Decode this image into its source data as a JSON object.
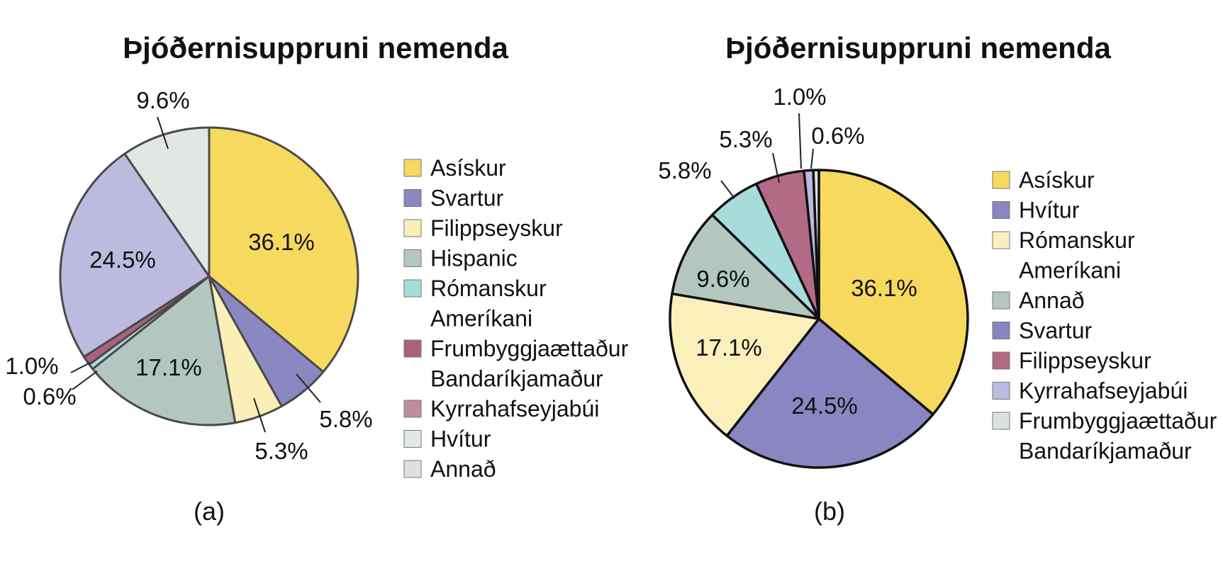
{
  "chart_data": [
    {
      "type": "pie",
      "title": "Þjóðernisuppruni nemenda",
      "caption": "(a)",
      "slices": [
        {
          "label": "Asískur",
          "value": 36.1,
          "value_label": "36.1%",
          "color": "#f6d95f"
        },
        {
          "label": "Svartur",
          "value": 5.8,
          "value_label": "5.8%",
          "color": "#8b87c0"
        },
        {
          "label": "Filippseyskur",
          "value": 5.3,
          "value_label": "5.3%",
          "color": "#fbefb8"
        },
        {
          "label": "Hispanic",
          "value": 17.1,
          "value_label": "17.1%",
          "color": "#b3c7bf"
        },
        {
          "label": "Rómanskur Ameríkani",
          "value": 0.6,
          "value_label": "0.6%",
          "color": "#a8dcdc"
        },
        {
          "label": "Frumbyggjaættaður Bandaríkjamaður",
          "value": 1.0,
          "value_label": "1.0%",
          "color": "#a8637a"
        },
        {
          "label": "Kyrrahafseyjabúi",
          "value": 0.0,
          "value_label": "",
          "color": "#c08ca0"
        },
        {
          "label": "Hvítur",
          "value": 24.5,
          "value_label": "24.5%",
          "color": "#bdbadf"
        },
        {
          "label": "Annað",
          "value": 9.6,
          "value_label": "9.6%",
          "color": "#e3e7e3"
        }
      ],
      "legend": [
        "Asískur",
        "Svartur",
        "Filippseyskur",
        "Hispanic",
        "Rómanskur Ameríkani",
        "Frumbyggjaættaður Bandaríkjamaður",
        "Kyrrahafseyjabúi",
        "Hvítur",
        "Annað"
      ],
      "legend_position": "right"
    },
    {
      "type": "pie",
      "title": "Þjóðernisuppruni nemenda",
      "caption": "(b)",
      "slices": [
        {
          "label": "Asískur",
          "value": 36.1,
          "value_label": "36.1%",
          "color": "#f6d95f"
        },
        {
          "label": "Hvítur",
          "value": 24.5,
          "value_label": "24.5%",
          "color": "#8a86c2"
        },
        {
          "label": "Rómanskur Ameríkani",
          "value": 17.1,
          "value_label": "17.1%",
          "color": "#fbefbc"
        },
        {
          "label": "Annað",
          "value": 9.6,
          "value_label": "9.6%",
          "color": "#b3c7bf"
        },
        {
          "label": "Svartur",
          "value": 5.8,
          "value_label": "5.8%",
          "color": "#a8dcdc"
        },
        {
          "label": "Filippseyskur",
          "value": 5.3,
          "value_label": "5.3%",
          "color": "#b36a84"
        },
        {
          "label": "Kyrrahafseyjabúi",
          "value": 1.0,
          "value_label": "1.0%",
          "color": "#bdbadf"
        },
        {
          "label": "Frumbyggjaættaður Bandaríkjamaður",
          "value": 0.6,
          "value_label": "0.6%",
          "color": "#d9e4de"
        }
      ],
      "legend": [
        "Asískur",
        "Hvítur",
        "Rómanskur Ameríkani",
        "Annað",
        "Svartur",
        "Filippseyskur",
        "Kyrrahafseyjabúi",
        "Frumbyggjaættaður Bandaríkjamaður"
      ],
      "legend_position": "right"
    }
  ]
}
